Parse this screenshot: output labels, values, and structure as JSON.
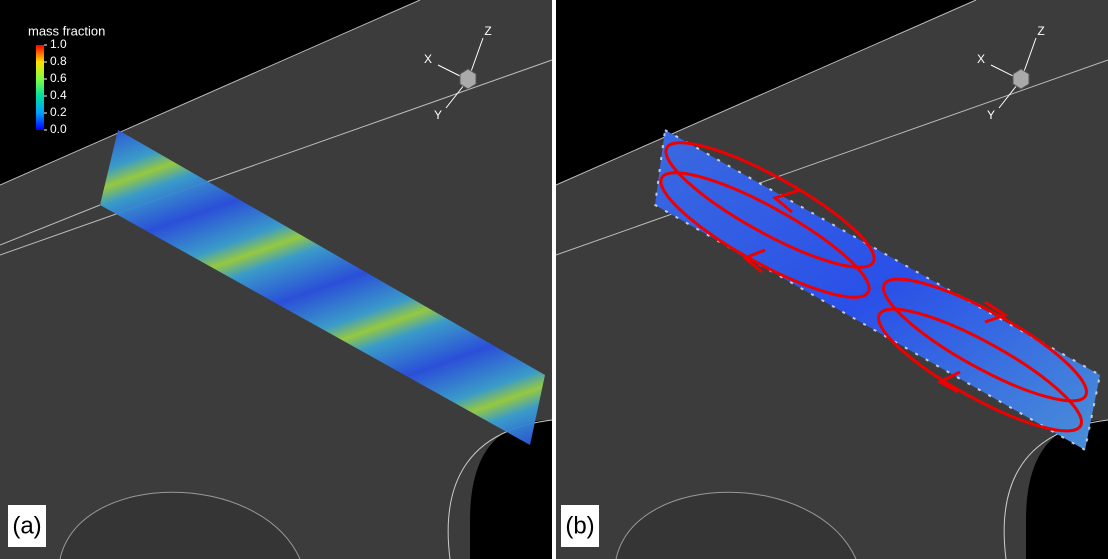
{
  "colorbar": {
    "title": "mass fraction",
    "lim": [
      0,
      1
    ],
    "ticks": [
      {
        "value": 1,
        "label": "1.0"
      },
      {
        "value": 0.8,
        "label": "0.8"
      },
      {
        "value": 0.6,
        "label": "0.6"
      },
      {
        "value": 0.4,
        "label": "0.4"
      },
      {
        "value": 0.2,
        "label": "0.2"
      },
      {
        "value": 0,
        "label": "0.0"
      }
    ]
  },
  "panels": [
    {
      "label": "(a)",
      "axes": [
        "X",
        "Y",
        "Z"
      ]
    },
    {
      "label": "(b)",
      "axes": [
        "X",
        "Y",
        "Z"
      ]
    }
  ]
}
